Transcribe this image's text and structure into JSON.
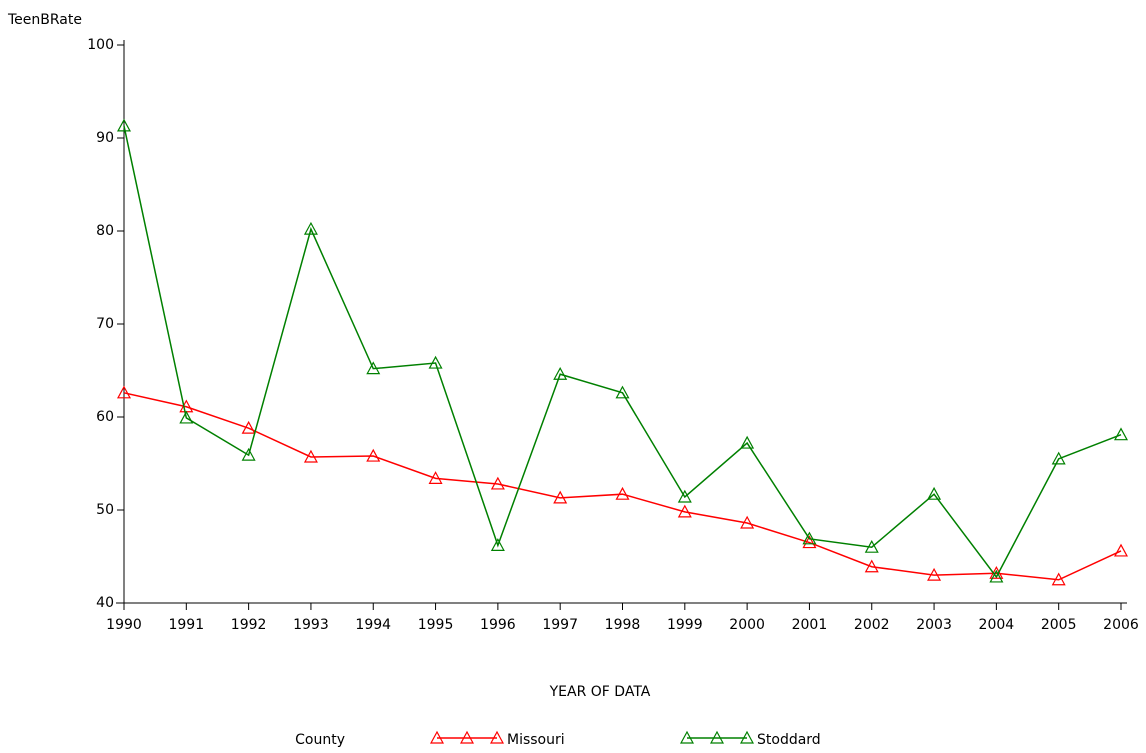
{
  "chart_data": {
    "type": "line",
    "y_label": "TeenBRate",
    "x_label": "YEAR OF DATA",
    "legend_title": "County",
    "legend_position": "bottom",
    "x": [
      1990,
      1991,
      1992,
      1993,
      1994,
      1995,
      1996,
      1997,
      1998,
      1999,
      2000,
      2001,
      2002,
      2003,
      2004,
      2005,
      2006
    ],
    "xlim": [
      1990,
      2006
    ],
    "xticks": [
      1990,
      1991,
      1992,
      1993,
      1994,
      1995,
      1996,
      1997,
      1998,
      1999,
      2000,
      2001,
      2002,
      2003,
      2004,
      2005,
      2006
    ],
    "ylim": [
      40,
      100
    ],
    "yticks": [
      40,
      50,
      60,
      70,
      80,
      90,
      100
    ],
    "series": [
      {
        "name": "Missouri",
        "color": "#ff0000",
        "values": [
          62.6,
          61.1,
          58.8,
          55.7,
          55.8,
          53.4,
          52.8,
          51.3,
          51.7,
          49.8,
          48.6,
          46.5,
          43.9,
          43.0,
          43.2,
          42.5,
          45.6
        ]
      },
      {
        "name": "Stoddard",
        "color": "#008000",
        "values": [
          91.3,
          59.9,
          55.9,
          80.2,
          65.2,
          65.8,
          46.2,
          64.6,
          62.6,
          51.4,
          57.2,
          46.9,
          46.0,
          51.7,
          42.8,
          55.5,
          58.1
        ]
      }
    ]
  }
}
